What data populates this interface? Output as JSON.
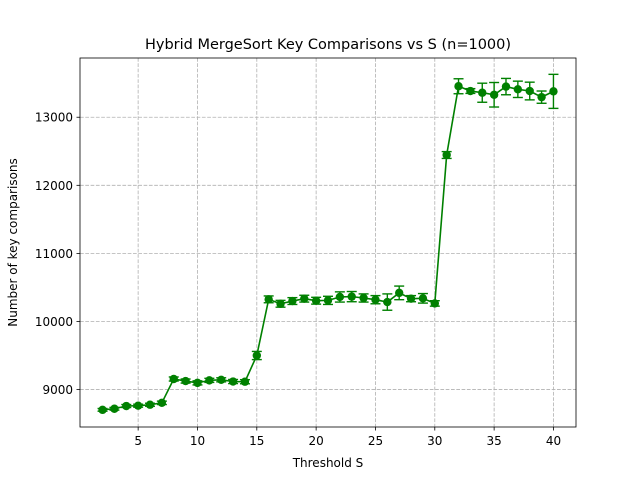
{
  "chart_data": {
    "type": "line",
    "title": "Hybrid MergeSort Key Comparisons vs S (n=1000)",
    "xlabel": "Threshold S",
    "ylabel": "Number of key comparisons",
    "xlim": [
      0.1,
      41.9
    ],
    "ylim": [
      8450,
      13870
    ],
    "xticks": [
      5,
      10,
      15,
      20,
      25,
      30,
      35,
      40
    ],
    "yticks": [
      9000,
      10000,
      11000,
      12000,
      13000
    ],
    "grid": true,
    "color": "#008000",
    "marker": "circle",
    "error_bars": true,
    "series": [
      {
        "x": [
          2,
          3,
          4,
          5,
          6,
          7,
          8,
          9,
          10,
          11,
          12,
          13,
          14,
          15,
          16,
          17,
          18,
          19,
          20,
          21,
          22,
          23,
          24,
          25,
          26,
          27,
          28,
          29,
          30,
          31,
          32,
          33,
          34,
          35,
          36,
          37,
          38,
          39,
          40
        ],
        "values": [
          8702,
          8718,
          8758,
          8763,
          8777,
          8805,
          9155,
          9125,
          9098,
          9135,
          9143,
          9118,
          9115,
          9500,
          10325,
          10260,
          10300,
          10335,
          10305,
          10310,
          10360,
          10365,
          10345,
          10320,
          10285,
          10420,
          10335,
          10340,
          10265,
          12445,
          13455,
          13385,
          13360,
          13330,
          13450,
          13410,
          13385,
          13295,
          13380
        ],
        "errors": [
          20,
          20,
          22,
          22,
          22,
          25,
          30,
          30,
          30,
          30,
          30,
          30,
          30,
          60,
          50,
          50,
          50,
          50,
          50,
          60,
          75,
          75,
          60,
          60,
          120,
          100,
          45,
          70,
          40,
          50,
          110,
          35,
          140,
          180,
          120,
          120,
          130,
          90,
          250
        ]
      }
    ]
  }
}
